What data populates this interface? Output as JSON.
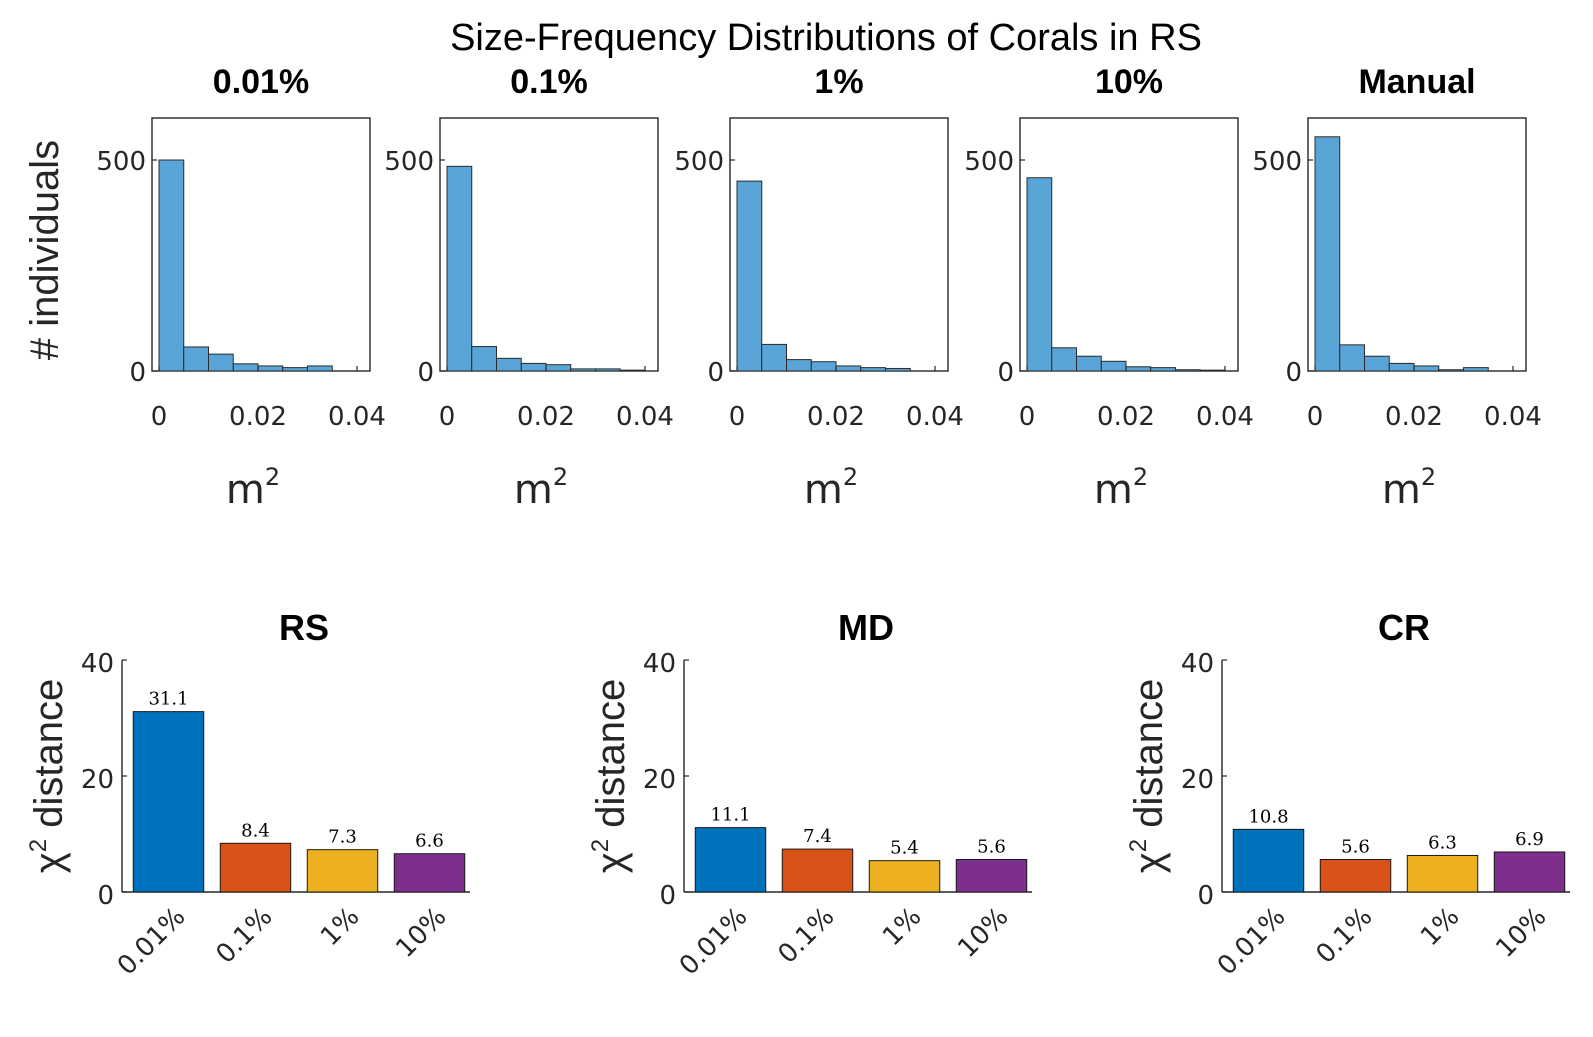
{
  "title": "Size-Frequency Distributions of Corals in RS",
  "colors": {
    "hist_fill": "#5aa5d8",
    "hist_edge": "#2b2b2b",
    "bars": [
      "#0072bd",
      "#d95319",
      "#edb120",
      "#7e2f8e"
    ],
    "axis": "#262626"
  },
  "chart_data": [
    {
      "type": "bar",
      "subtype": "histogram",
      "title": "0.01%",
      "xlabel": "m",
      "xlabel_superscript": "2",
      "ylabel": "# individuals",
      "xlim": [
        0,
        0.04
      ],
      "ylim": [
        0,
        500
      ],
      "xticks": [
        "0",
        "0.02",
        "0.04"
      ],
      "yticks": [
        "0",
        "500"
      ],
      "bin_edges": [
        0,
        0.005,
        0.01,
        0.015,
        0.02,
        0.025,
        0.03,
        0.035,
        0.04
      ],
      "values": [
        500,
        57,
        40,
        17,
        12,
        8,
        12,
        0
      ]
    },
    {
      "type": "bar",
      "subtype": "histogram",
      "title": "0.1%",
      "xlabel": "m",
      "xlabel_superscript": "2",
      "xlim": [
        0,
        0.04
      ],
      "ylim": [
        0,
        500
      ],
      "xticks": [
        "0",
        "0.02",
        "0.04"
      ],
      "yticks": [
        "0",
        "500"
      ],
      "bin_edges": [
        0,
        0.005,
        0.01,
        0.015,
        0.02,
        0.025,
        0.03,
        0.035,
        0.04
      ],
      "values": [
        485,
        58,
        30,
        18,
        15,
        5,
        5,
        2
      ]
    },
    {
      "type": "bar",
      "subtype": "histogram",
      "title": "1%",
      "xlabel": "m",
      "xlabel_superscript": "2",
      "xlim": [
        0,
        0.04
      ],
      "ylim": [
        0,
        500
      ],
      "xticks": [
        "0",
        "0.02",
        "0.04"
      ],
      "yticks": [
        "0",
        "500"
      ],
      "bin_edges": [
        0,
        0.005,
        0.01,
        0.015,
        0.02,
        0.025,
        0.03,
        0.035,
        0.04
      ],
      "values": [
        450,
        63,
        27,
        22,
        12,
        8,
        6,
        0
      ]
    },
    {
      "type": "bar",
      "subtype": "histogram",
      "title": "10%",
      "xlabel": "m",
      "xlabel_superscript": "2",
      "xlim": [
        0,
        0.04
      ],
      "ylim": [
        0,
        500
      ],
      "xticks": [
        "0",
        "0.02",
        "0.04"
      ],
      "yticks": [
        "0",
        "500"
      ],
      "bin_edges": [
        0,
        0.005,
        0.01,
        0.015,
        0.02,
        0.025,
        0.03,
        0.035,
        0.04
      ],
      "values": [
        458,
        55,
        35,
        23,
        10,
        8,
        3,
        2
      ]
    },
    {
      "type": "bar",
      "subtype": "histogram",
      "title": "Manual",
      "xlabel": "m",
      "xlabel_superscript": "2",
      "xlim": [
        0,
        0.04
      ],
      "ylim": [
        0,
        500
      ],
      "xticks": [
        "0",
        "0.02",
        "0.04"
      ],
      "yticks": [
        "0",
        "500"
      ],
      "bin_edges": [
        0,
        0.005,
        0.01,
        0.015,
        0.02,
        0.025,
        0.03,
        0.035,
        0.04
      ],
      "values": [
        555,
        62,
        35,
        18,
        12,
        3,
        8,
        0
      ]
    },
    {
      "type": "bar",
      "title": "RS",
      "ylabel": "distance",
      "ylabel_symbol": "χ",
      "ylabel_superscript": "2",
      "ylim": [
        0,
        40
      ],
      "yticks": [
        "0",
        "20",
        "40"
      ],
      "categories": [
        "0.01%",
        "0.1%",
        "1%",
        "10%"
      ],
      "values": [
        31.1,
        8.4,
        7.3,
        6.6
      ],
      "data_labels": [
        "31.1",
        "8.4",
        "7.3",
        "6.6"
      ]
    },
    {
      "type": "bar",
      "title": "MD",
      "ylabel": "distance",
      "ylabel_symbol": "χ",
      "ylabel_superscript": "2",
      "ylim": [
        0,
        40
      ],
      "yticks": [
        "0",
        "20",
        "40"
      ],
      "categories": [
        "0.01%",
        "0.1%",
        "1%",
        "10%"
      ],
      "values": [
        11.1,
        7.4,
        5.4,
        5.6
      ],
      "data_labels": [
        "11.1",
        "7.4",
        "5.4",
        "5.6"
      ]
    },
    {
      "type": "bar",
      "title": "CR",
      "ylabel": "distance",
      "ylabel_symbol": "χ",
      "ylabel_superscript": "2",
      "ylim": [
        0,
        40
      ],
      "yticks": [
        "0",
        "20",
        "40"
      ],
      "categories": [
        "0.01%",
        "0.1%",
        "1%",
        "10%"
      ],
      "values": [
        10.8,
        5.6,
        6.3,
        6.9
      ],
      "data_labels": [
        "10.8",
        "5.6",
        "6.3",
        "6.9"
      ]
    }
  ]
}
